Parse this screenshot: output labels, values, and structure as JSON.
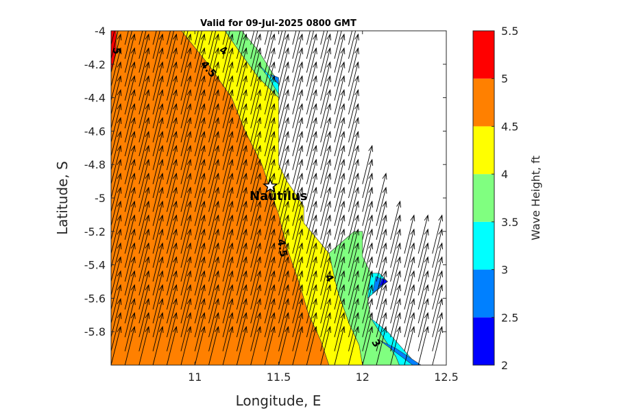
{
  "chart_data": {
    "type": "heatmap",
    "subtype": "filled-contour-with-wind-vectors",
    "title": "Valid for 09-Jul-2025 0800 GMT",
    "xlabel": "Longitude, E",
    "ylabel": "Latitude, S",
    "xlim": [
      10.5,
      12.5
    ],
    "ylim": [
      -6.0,
      -4.0
    ],
    "xticks": [
      11,
      11.5,
      12,
      12.5
    ],
    "xtick_labels": [
      "11",
      "11.5",
      "12",
      "12.5"
    ],
    "yticks": [
      -4,
      -4.2,
      -4.4,
      -4.6,
      -4.8,
      -5,
      -5.2,
      -5.4,
      -5.6,
      -5.8
    ],
    "ytick_labels": [
      "-4",
      "-4.2",
      "-4.4",
      "-4.6",
      "-4.8",
      "-5",
      "-5.2",
      "-5.4",
      "-5.6",
      "-5.8"
    ],
    "colorbar": {
      "label": "Wave Height, ft",
      "levels": [
        2,
        2.5,
        3,
        3.5,
        4,
        4.5,
        5,
        5.5
      ],
      "tick_labels": [
        "2",
        "2.5",
        "3",
        "3.5",
        "4",
        "4.5",
        "5",
        "5.5"
      ],
      "colors": [
        "#0000ff",
        "#0080ff",
        "#00ffff",
        "#80ff80",
        "#ffff00",
        "#ff8000",
        "#ff0000"
      ]
    },
    "land_color": "#ffffff",
    "coastline": [
      [
        11.48,
        -4.0
      ],
      [
        11.5,
        -4.3
      ],
      [
        11.5,
        -4.8
      ],
      [
        11.55,
        -4.9
      ],
      [
        11.65,
        -5.05
      ],
      [
        11.65,
        -5.15
      ],
      [
        11.8,
        -5.3
      ],
      [
        11.95,
        -5.2
      ],
      [
        12.0,
        -5.2
      ],
      [
        12.0,
        -5.35
      ],
      [
        12.15,
        -5.5
      ],
      [
        12.0,
        -5.75
      ],
      [
        12.2,
        -5.9
      ],
      [
        12.35,
        -6.0
      ]
    ],
    "regions": [
      {
        "level": "4.5-5",
        "color": "#ff8000",
        "polygon": [
          [
            10.5,
            -4.0
          ],
          [
            10.92,
            -4.0
          ],
          [
            11.08,
            -4.2
          ],
          [
            11.22,
            -4.4
          ],
          [
            11.3,
            -4.6
          ],
          [
            11.4,
            -4.8
          ],
          [
            11.5,
            -5.1
          ],
          [
            11.55,
            -5.3
          ],
          [
            11.62,
            -5.5
          ],
          [
            11.68,
            -5.7
          ],
          [
            11.75,
            -5.85
          ],
          [
            11.8,
            -6.0
          ],
          [
            10.5,
            -6.0
          ]
        ]
      },
      {
        "level": "5-5.5",
        "color": "#ff0000",
        "polygon": [
          [
            10.5,
            -4.0
          ],
          [
            10.53,
            -4.0
          ],
          [
            10.53,
            -4.12
          ],
          [
            10.5,
            -4.25
          ]
        ]
      },
      {
        "level": "4-4.5",
        "color": "#ffff00",
        "polygon": [
          [
            10.92,
            -4.0
          ],
          [
            11.18,
            -4.0
          ],
          [
            11.27,
            -4.13
          ],
          [
            11.38,
            -4.28
          ],
          [
            11.5,
            -4.4
          ],
          [
            11.5,
            -4.8
          ],
          [
            11.55,
            -4.9
          ],
          [
            11.65,
            -5.05
          ],
          [
            11.65,
            -5.15
          ],
          [
            11.8,
            -5.33
          ],
          [
            11.85,
            -5.55
          ],
          [
            11.92,
            -5.75
          ],
          [
            11.98,
            -5.88
          ],
          [
            12.0,
            -6.0
          ],
          [
            11.8,
            -6.0
          ],
          [
            11.75,
            -5.85
          ],
          [
            11.68,
            -5.7
          ],
          [
            11.62,
            -5.5
          ],
          [
            11.55,
            -5.3
          ],
          [
            11.5,
            -5.1
          ],
          [
            11.4,
            -4.8
          ],
          [
            11.3,
            -4.6
          ],
          [
            11.22,
            -4.4
          ],
          [
            11.08,
            -4.2
          ]
        ]
      },
      {
        "level": "3.5-4",
        "color": "#80ff80",
        "polygon": [
          [
            11.18,
            -4.0
          ],
          [
            11.28,
            -4.0
          ],
          [
            11.38,
            -4.12
          ],
          [
            11.48,
            -4.28
          ],
          [
            11.5,
            -4.32
          ],
          [
            11.5,
            -4.4
          ],
          [
            11.38,
            -4.28
          ],
          [
            11.27,
            -4.13
          ]
        ]
      },
      {
        "level": "3.5-4",
        "color": "#80ff80",
        "polygon": [
          [
            11.8,
            -5.33
          ],
          [
            11.95,
            -5.2
          ],
          [
            12.0,
            -5.2
          ],
          [
            12.0,
            -5.35
          ],
          [
            12.05,
            -5.45
          ],
          [
            12.03,
            -5.6
          ],
          [
            12.05,
            -5.72
          ],
          [
            12.2,
            -5.95
          ],
          [
            12.22,
            -6.0
          ],
          [
            12.0,
            -6.0
          ],
          [
            11.98,
            -5.88
          ],
          [
            11.92,
            -5.75
          ],
          [
            11.85,
            -5.55
          ]
        ]
      },
      {
        "level": "3-3.5",
        "color": "#00ffff",
        "polygon": [
          [
            11.38,
            -4.2
          ],
          [
            11.42,
            -4.24
          ],
          [
            11.5,
            -4.32
          ],
          [
            11.5,
            -4.38
          ],
          [
            11.44,
            -4.28
          ]
        ]
      },
      {
        "level": "3-3.5",
        "color": "#00ffff",
        "polygon": [
          [
            12.05,
            -5.45
          ],
          [
            12.1,
            -5.45
          ],
          [
            12.15,
            -5.5
          ],
          [
            12.03,
            -5.6
          ]
        ]
      },
      {
        "level": "3-3.5",
        "color": "#00ffff",
        "polygon": [
          [
            12.05,
            -5.72
          ],
          [
            12.15,
            -5.8
          ],
          [
            12.3,
            -5.97
          ],
          [
            12.32,
            -6.0
          ],
          [
            12.22,
            -6.0
          ],
          [
            12.2,
            -5.95
          ]
        ]
      },
      {
        "level": "2.5-3",
        "color": "#0080ff",
        "polygon": [
          [
            11.45,
            -4.26
          ],
          [
            11.5,
            -4.32
          ],
          [
            11.5,
            -4.28
          ]
        ]
      },
      {
        "level": "2.5-3",
        "color": "#0080ff",
        "polygon": [
          [
            12.08,
            -5.47
          ],
          [
            12.15,
            -5.5
          ],
          [
            12.06,
            -5.57
          ]
        ]
      },
      {
        "level": "2.5-3",
        "color": "#0080ff",
        "polygon": [
          [
            12.1,
            -5.85
          ],
          [
            12.2,
            -5.9
          ],
          [
            12.35,
            -6.0
          ],
          [
            12.3,
            -6.0
          ]
        ]
      },
      {
        "level": "2-2.5",
        "color": "#0000ff",
        "polygon": [
          [
            12.12,
            -5.48
          ],
          [
            12.15,
            -5.5
          ],
          [
            12.1,
            -5.53
          ]
        ]
      }
    ],
    "contour_labels": [
      {
        "text": "5",
        "x": 10.53,
        "y": -4.12
      },
      {
        "text": "4",
        "x": 11.17,
        "y": -4.12
      },
      {
        "text": "4.5",
        "x": 11.08,
        "y": -4.23
      },
      {
        "text": "4.5",
        "x": 11.52,
        "y": -5.3
      },
      {
        "text": "4",
        "x": 11.8,
        "y": -5.48
      },
      {
        "text": "3",
        "x": 12.08,
        "y": -5.87
      }
    ],
    "station": {
      "name": "Nautilus",
      "x": 11.45,
      "y": -4.93
    },
    "wind_vectors": {
      "lon": [
        10.5,
        10.583,
        10.667,
        10.75,
        10.833,
        10.917,
        11.0,
        11.083,
        11.167,
        11.25,
        11.333,
        11.417,
        11.5,
        11.583,
        11.667,
        11.75,
        11.833,
        11.917,
        12.0,
        12.083,
        12.167,
        12.25,
        12.333,
        12.417
      ],
      "lat": [
        -4.0,
        -4.083,
        -4.167,
        -4.25,
        -4.333,
        -4.417,
        -4.5,
        -4.583,
        -4.667,
        -4.75,
        -4.833,
        -4.917,
        -5.0,
        -5.083,
        -5.167,
        -5.25,
        -5.333,
        -5.417,
        -5.5,
        -5.583,
        -5.667,
        -5.75,
        -5.833,
        -5.917,
        -6.0
      ],
      "scale_note": "uniform grid over the sea area, pointing north-north-east"
    }
  }
}
